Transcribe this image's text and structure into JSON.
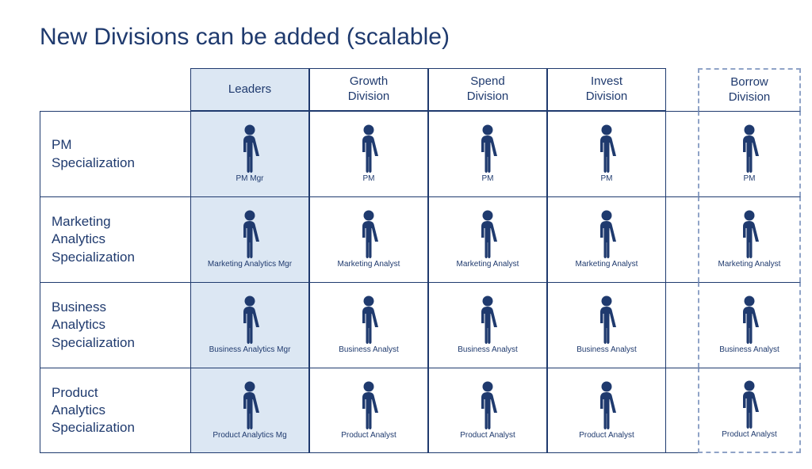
{
  "title": "New Divisions can be added (scalable)",
  "colors": {
    "title": "#1f3a6e",
    "border": "#1f3a6e",
    "icon": "#1f3a6e",
    "text": "#1f3a6e",
    "leaders_bg": "#dce7f3",
    "dashed_border": "#8fa3c7",
    "background": "#ffffff"
  },
  "structure": {
    "type": "org-matrix",
    "columns": [
      {
        "key": "rowhead",
        "label": ""
      },
      {
        "key": "leaders",
        "label": "Leaders",
        "highlighted": true
      },
      {
        "key": "growth",
        "label": "Growth\nDivision"
      },
      {
        "key": "spend",
        "label": "Spend\nDivision"
      },
      {
        "key": "invest",
        "label": "Invest\nDivision"
      },
      {
        "key": "gap",
        "label": ""
      },
      {
        "key": "borrow",
        "label": "Borrow\nDivision",
        "dashed": true
      }
    ],
    "rows": [
      {
        "label": "PM\nSpecialization",
        "cells": {
          "leaders": "PM Mgr",
          "growth": "PM",
          "spend": "PM",
          "invest": "PM",
          "borrow": "PM"
        }
      },
      {
        "label": "Marketing\nAnalytics\nSpecialization",
        "cells": {
          "leaders": "Marketing Analytics Mgr",
          "growth": "Marketing Analyst",
          "spend": "Marketing Analyst",
          "invest": "Marketing Analyst",
          "borrow": "Marketing Analyst"
        }
      },
      {
        "label": "Business\nAnalytics\nSpecialization",
        "cells": {
          "leaders": "Business Analytics Mgr",
          "growth": "Business Analyst",
          "spend": "Business Analyst",
          "invest": "Business Analyst",
          "borrow": "Business Analyst"
        }
      },
      {
        "label": "Product\nAnalytics\nSpecialization",
        "cells": {
          "leaders": "Product Analytics Mg",
          "growth": "Product Analyst",
          "spend": "Product Analyst",
          "invest": "Product Analyst",
          "borrow": "Product Analyst"
        }
      }
    ]
  }
}
